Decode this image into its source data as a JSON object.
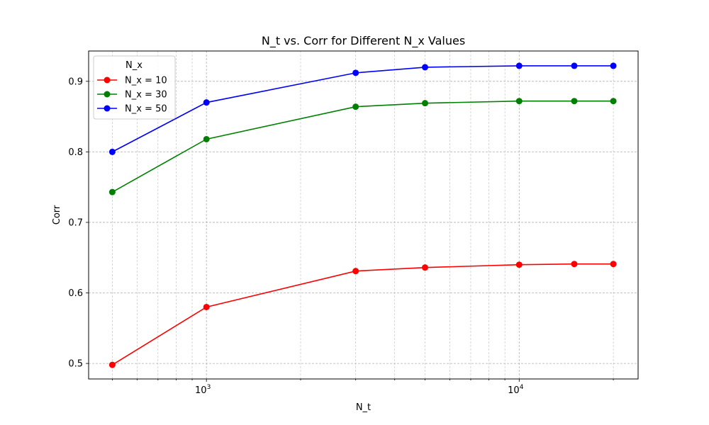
{
  "chart_data": {
    "type": "line",
    "title": "N_t vs. Corr for Different N_x Values",
    "xlabel": "N_t",
    "ylabel": "Corr",
    "xscale": "log",
    "x": [
      500,
      1000,
      3000,
      5000,
      10000,
      15000,
      20000
    ],
    "xlim": [
      420,
      24000
    ],
    "ylim": [
      0.478,
      0.943
    ],
    "x_major_ticks": [
      {
        "value": 1000,
        "base": "10",
        "exp": "3"
      },
      {
        "value": 10000,
        "base": "10",
        "exp": "4"
      }
    ],
    "y_ticks": [
      0.5,
      0.6,
      0.7,
      0.8,
      0.9
    ],
    "y_tick_labels": [
      "0.5",
      "0.6",
      "0.7",
      "0.8",
      "0.9"
    ],
    "grid": true,
    "legend": {
      "title": "N_x",
      "placement": "top-left"
    },
    "series": [
      {
        "name": "N_x = 10",
        "color": "#ff0000",
        "values": [
          0.498,
          0.58,
          0.631,
          0.636,
          0.64,
          0.641,
          0.641
        ]
      },
      {
        "name": "N_x = 30",
        "color": "#008000",
        "values": [
          0.743,
          0.818,
          0.864,
          0.869,
          0.872,
          0.872,
          0.872
        ]
      },
      {
        "name": "N_x = 50",
        "color": "#0000ff",
        "values": [
          0.8,
          0.87,
          0.912,
          0.92,
          0.922,
          0.922,
          0.922
        ]
      }
    ]
  }
}
